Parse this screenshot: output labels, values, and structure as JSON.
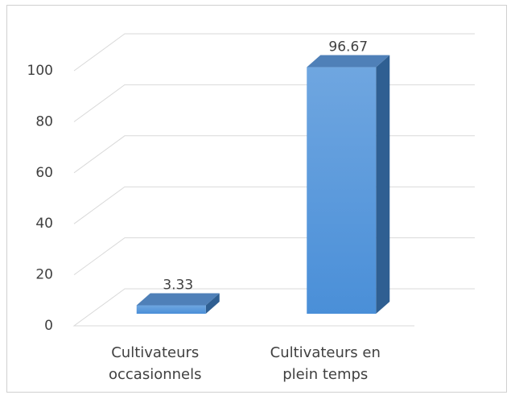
{
  "chart_data": {
    "type": "bar3d",
    "categories": [
      "Cultivateurs occasionnels",
      "Cultivateurs en plein temps"
    ],
    "values": [
      3.33,
      96.67
    ],
    "color": "#4a8fd8",
    "ylim": [
      0,
      100
    ],
    "yticks": [
      0,
      20,
      40,
      60,
      80,
      100
    ],
    "grid": true
  }
}
